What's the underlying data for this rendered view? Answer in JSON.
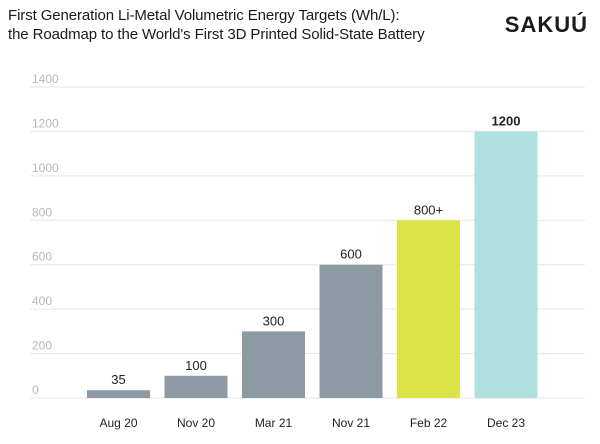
{
  "header": {
    "title_line1": "First Generation Li-Metal Volumetric Energy Targets (Wh/L):",
    "title_line2": "the Roadmap to the World's First 3D Printed Solid-State Battery",
    "logo": "SAKUÚ"
  },
  "colors": {
    "gray_bar": "#8c9aa3",
    "yellow_bar": "#dbe346",
    "cyan_bar": "#ade0de",
    "grid": "#e6e6e6",
    "tick_text": "#b8b8b8"
  },
  "chart_data": {
    "type": "bar",
    "title": "First Generation Li-Metal Volumetric Energy Targets (Wh/L): the Roadmap to the World's First 3D Printed Solid-State Battery",
    "categories": [
      "Aug 20",
      "Nov 20",
      "Mar 21",
      "Nov 21",
      "Feb 22",
      "Dec 23"
    ],
    "values": [
      35,
      100,
      300,
      600,
      800,
      1200
    ],
    "data_labels": [
      "35",
      "100",
      "300",
      "600",
      "800+",
      "1200"
    ],
    "bar_colors": [
      "#8c9aa3",
      "#8c9aa3",
      "#8c9aa3",
      "#8c9aa3",
      "#dbe346",
      "#ade0de"
    ],
    "bold_labels": [
      false,
      false,
      false,
      false,
      false,
      true
    ],
    "ylim": [
      0,
      1400
    ],
    "yticks": [
      0,
      200,
      400,
      600,
      800,
      1000,
      1200,
      1400
    ],
    "ytick_labels": [
      "0",
      "200",
      "400",
      "600",
      "800",
      "1000",
      "1200",
      "1400"
    ],
    "grid": true,
    "xlabel": "",
    "ylabel": ""
  }
}
